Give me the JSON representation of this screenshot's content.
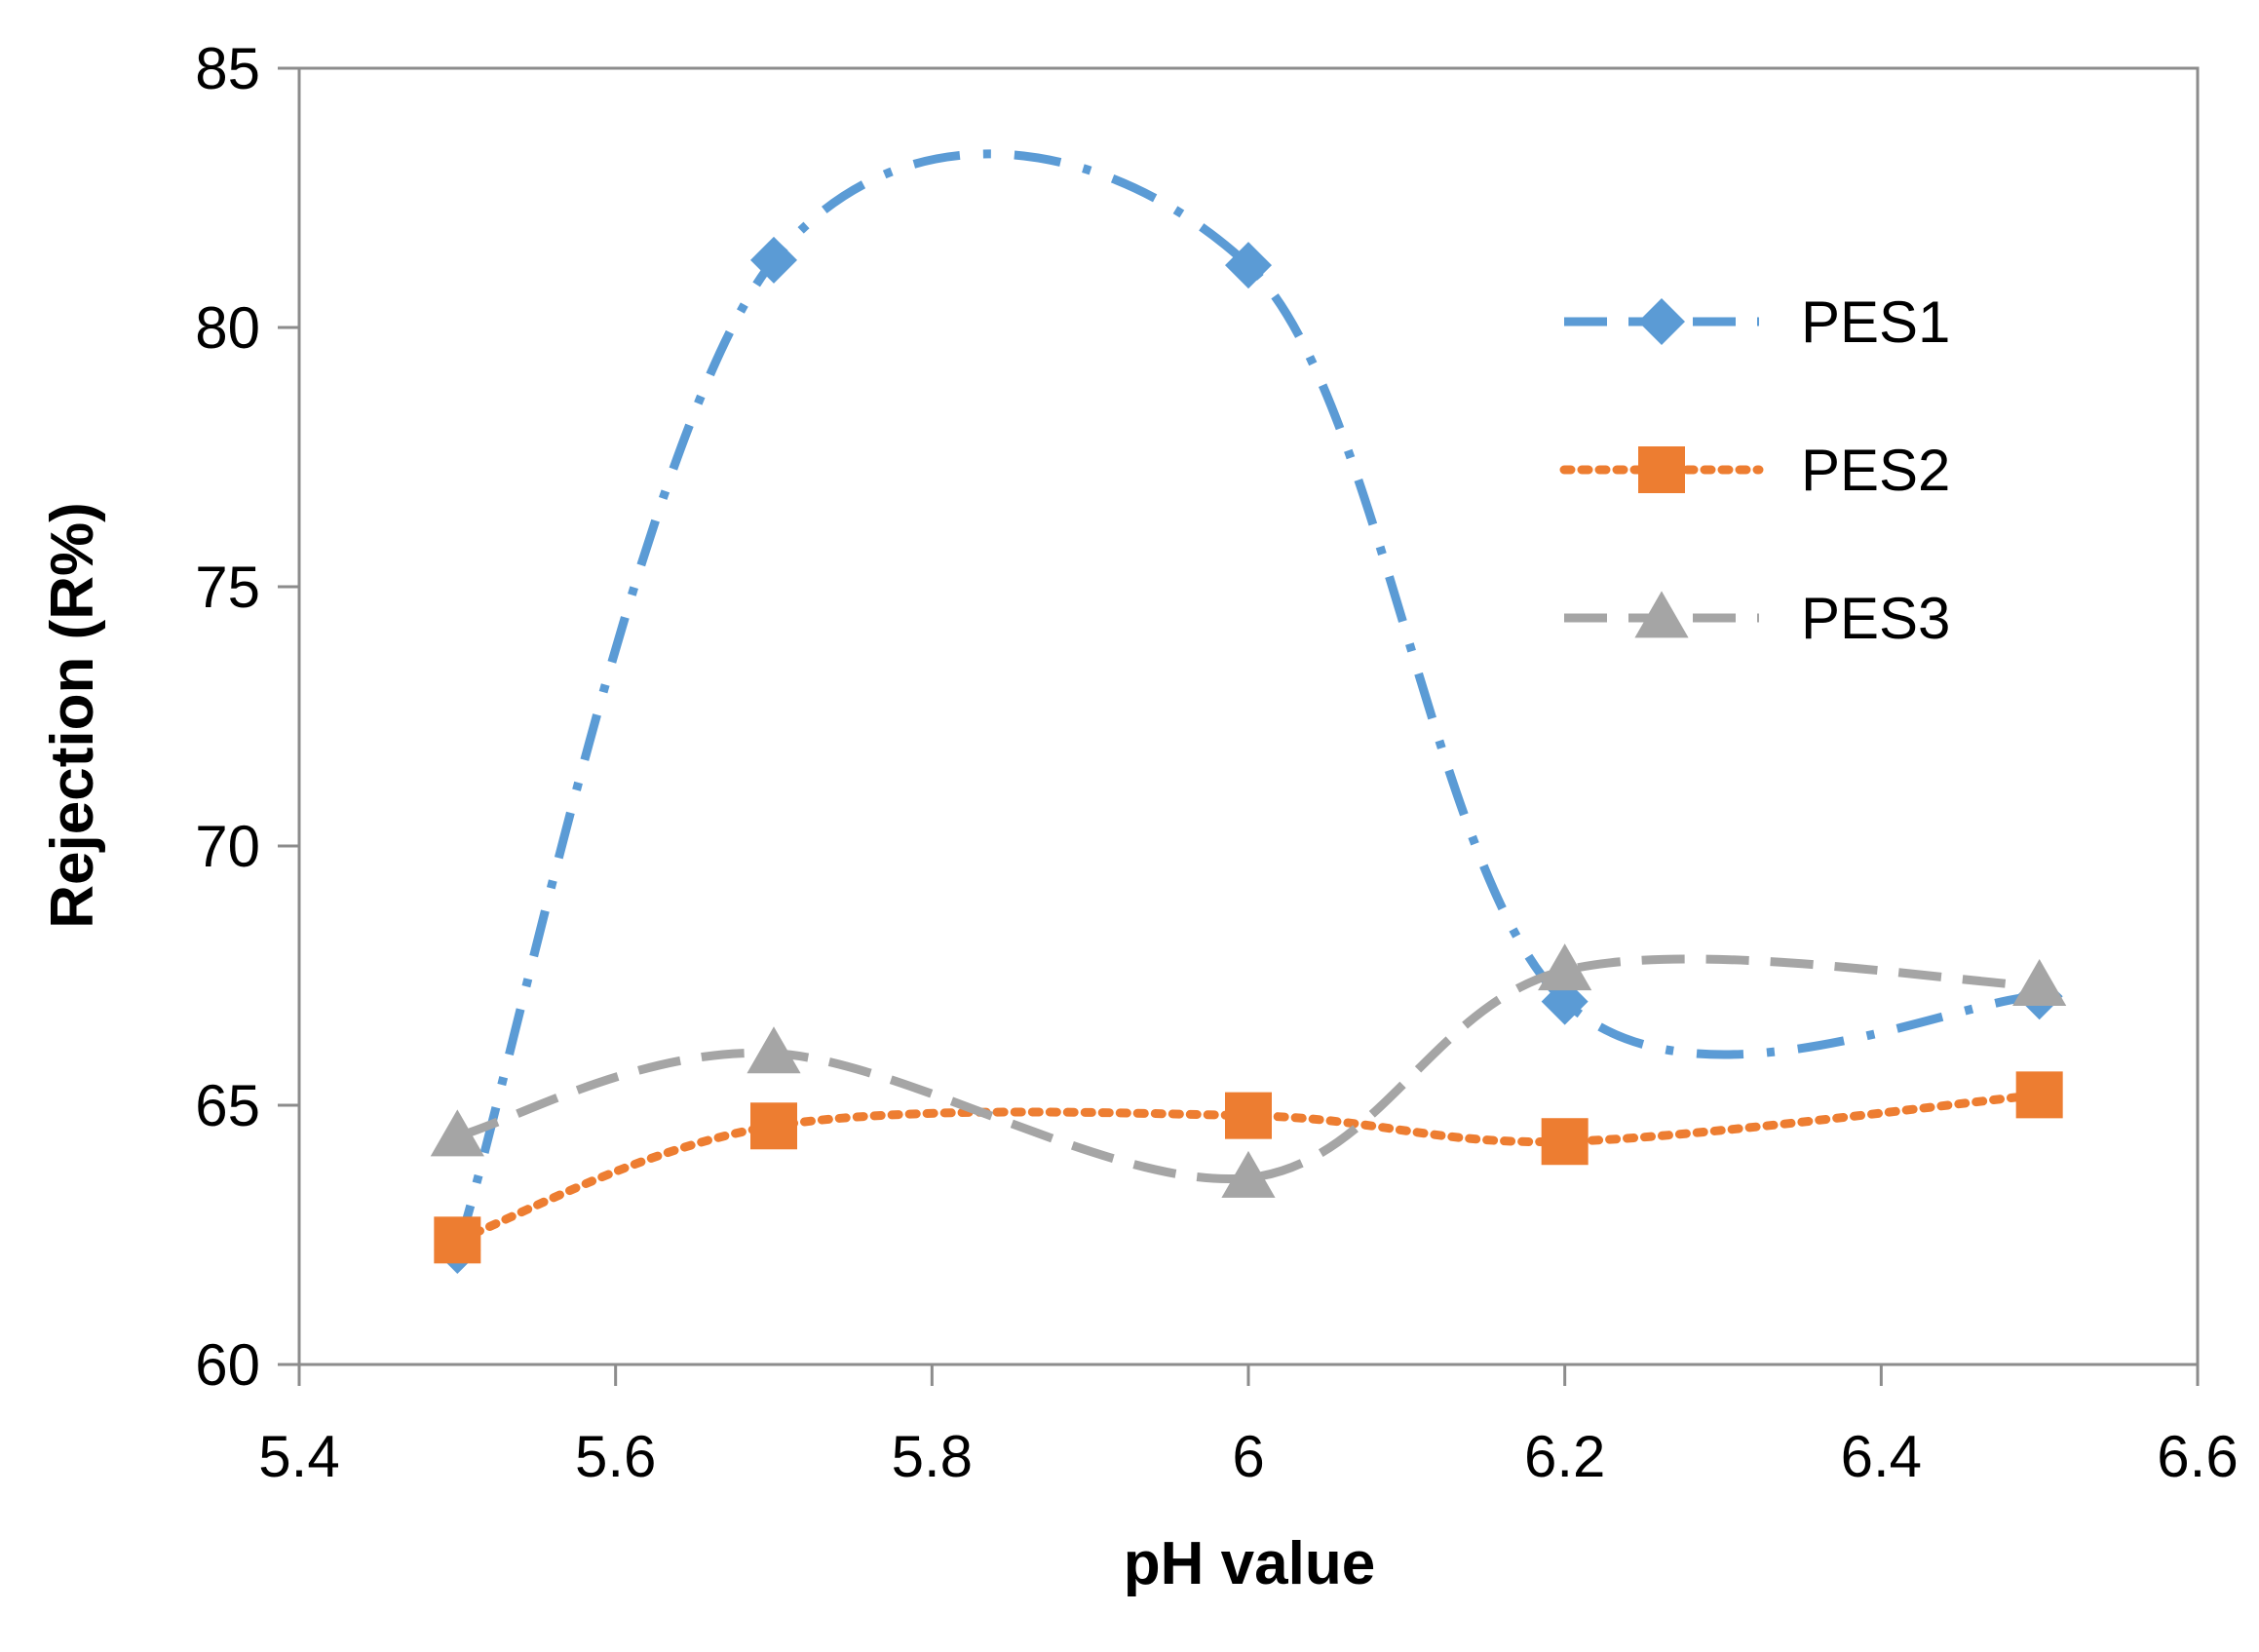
{
  "chart_data": {
    "type": "line",
    "title": "",
    "xlabel": "pH value",
    "ylabel": "Rejection (R%)",
    "xlim": [
      5.4,
      6.6
    ],
    "ylim": [
      60,
      85
    ],
    "xticks": [
      5.4,
      5.6,
      5.8,
      6.0,
      6.2,
      6.4,
      6.6
    ],
    "xtick_labels": [
      "5.4",
      "5.6",
      "5.8",
      "6",
      "6.2",
      "6.4",
      "6.6"
    ],
    "yticks": [
      60,
      65,
      70,
      75,
      80,
      85
    ],
    "ytick_labels": [
      "60",
      "65",
      "70",
      "75",
      "80",
      "85"
    ],
    "grid": false,
    "smoothed": true,
    "legend_position": "top-right",
    "x": [
      5.5,
      5.7,
      6.0,
      6.2,
      6.5
    ],
    "series": [
      {
        "name": "PES1",
        "values": [
          62.2,
          81.3,
          81.2,
          67.0,
          67.1
        ],
        "color": "#5B9BD5",
        "marker": "diamond",
        "line_style": "dash-dot"
      },
      {
        "name": "PES2",
        "values": [
          62.4,
          64.6,
          64.8,
          64.3,
          65.2
        ],
        "color": "#ED7D31",
        "marker": "square",
        "line_style": "dotted"
      },
      {
        "name": "PES3",
        "values": [
          64.4,
          66.0,
          63.6,
          67.6,
          67.3
        ],
        "color": "#A5A5A5",
        "marker": "triangle",
        "line_style": "dashed"
      }
    ]
  }
}
